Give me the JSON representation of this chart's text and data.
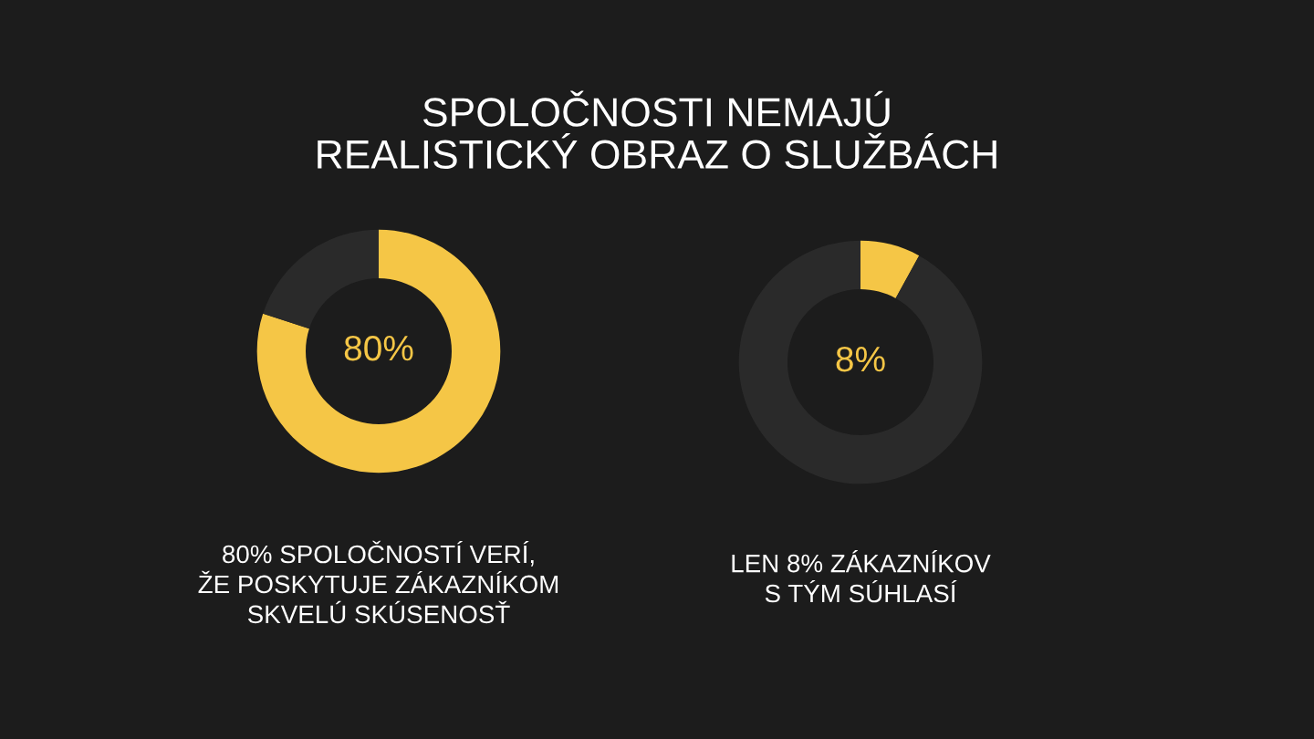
{
  "chart_data": [
    {
      "type": "donut",
      "title": "SPOLOČNOSTI NEMAJÚ\nREALISTICKÝ OBRAZ O SLUŽBÁCH",
      "categories": [
        null,
        null
      ],
      "values": [
        80,
        20
      ],
      "colors": [
        "#f5c646",
        "#2a2a2a"
      ],
      "annotations": [
        "80%",
        "80% SPOLOČNOSTÍ VERÍ,\nŽE POSKYTUJE ZÁKAZNÍKOM\nSKVELÚ SKÚSENOSŤ"
      ]
    },
    {
      "type": "donut",
      "categories": [
        null,
        null
      ],
      "values": [
        8,
        92
      ],
      "colors": [
        "#f5c646",
        "#2a2a2a"
      ],
      "annotations": [
        "8%",
        "LEN 8% ZÁKAZNÍKOV\nS TÝM SÚHLASÍ"
      ]
    }
  ]
}
